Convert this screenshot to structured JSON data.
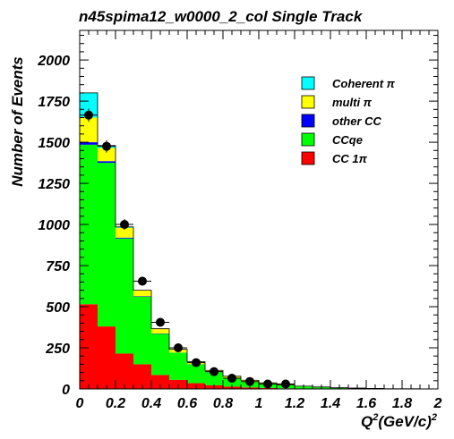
{
  "chart_data": {
    "type": "bar",
    "stacked": true,
    "title": "n45spima12_w0000_2_col Single Track",
    "ylabel": "Number of Events",
    "xlabel_main": "Q",
    "xlabel_sup1": "2",
    "xlabel_mid": "(GeV/c)",
    "xlabel_sup2": "2",
    "xlim": [
      0,
      2
    ],
    "ylim": [
      0,
      2180
    ],
    "xticks": [
      0,
      0.2,
      0.4,
      0.6,
      0.8,
      1,
      1.2,
      1.4,
      1.6,
      1.8,
      2
    ],
    "xtick_labels": [
      "0",
      "0.2",
      "0.4",
      "0.6",
      "0.8",
      "1",
      "1.2",
      "1.4",
      "1.6",
      "1.8",
      "2"
    ],
    "yticks": [
      0,
      250,
      500,
      750,
      1000,
      1250,
      1500,
      1750,
      2000
    ],
    "ytick_labels": [
      "0",
      "250",
      "500",
      "750",
      "1000",
      "1250",
      "1500",
      "1750",
      "2000"
    ],
    "bin_edges": [
      0,
      0.1,
      0.2,
      0.3,
      0.4,
      0.5,
      0.6,
      0.7,
      0.8,
      0.9,
      1.0,
      1.1,
      1.2,
      1.3,
      1.4,
      1.5,
      1.6,
      1.7,
      1.8,
      1.9,
      2.0
    ],
    "legend_position": "top-right",
    "series": [
      {
        "name": "CC 1π",
        "color": "#ff0000",
        "values": [
          515,
          380,
          215,
          150,
          85,
          55,
          35,
          22,
          14,
          9,
          6,
          4,
          3,
          2,
          1,
          1,
          1,
          0,
          0,
          0
        ]
      },
      {
        "name": "CCqe",
        "color": "#00ff00",
        "values": [
          970,
          995,
          700,
          410,
          250,
          165,
          115,
          80,
          55,
          38,
          27,
          18,
          12,
          8,
          5,
          3,
          2,
          1,
          1,
          0
        ]
      },
      {
        "name": "other CC",
        "color": "#0000ff",
        "values": [
          15,
          10,
          5,
          3,
          2,
          1,
          1,
          1,
          0,
          0,
          0,
          0,
          0,
          0,
          0,
          0,
          0,
          0,
          0,
          0
        ]
      },
      {
        "name": "multi π",
        "color": "#ffff00",
        "values": [
          150,
          80,
          60,
          35,
          28,
          20,
          15,
          10,
          8,
          6,
          4,
          3,
          2,
          2,
          1,
          1,
          0,
          0,
          0,
          0
        ]
      },
      {
        "name": "Coherent π",
        "color": "#00ffff",
        "values": [
          150,
          15,
          5,
          2,
          1,
          0,
          0,
          0,
          0,
          0,
          0,
          0,
          0,
          0,
          0,
          0,
          0,
          0,
          0,
          0
        ]
      }
    ],
    "data_points": {
      "x": [
        0.05,
        0.15,
        0.25,
        0.35,
        0.45,
        0.55,
        0.65,
        0.75,
        0.85,
        0.95,
        1.05,
        1.15
      ],
      "y": [
        1665,
        1475,
        1000,
        655,
        405,
        250,
        160,
        105,
        65,
        45,
        30,
        30
      ],
      "yerr": [
        40,
        38,
        32,
        25,
        20,
        16,
        13,
        10,
        8,
        7,
        6,
        6
      ]
    }
  }
}
